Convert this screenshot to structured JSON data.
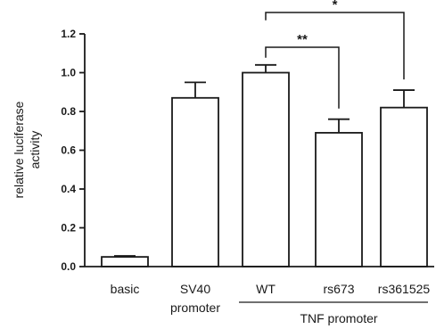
{
  "chart_data": {
    "type": "bar",
    "title": "",
    "xlabel": "",
    "ylabel": "relative luciferase activity",
    "ylim": [
      0,
      1.2
    ],
    "yticks": [
      "0.0",
      "0.2",
      "0.4",
      "0.6",
      "0.8",
      "1.0",
      "1.2"
    ],
    "categories": [
      "basic",
      "SV40",
      "WT",
      "rs673",
      "rs361525"
    ],
    "category_sublabels": [
      "",
      "promoter",
      "",
      "",
      ""
    ],
    "group_label": "TNF promoter",
    "values": [
      0.05,
      0.87,
      1.0,
      0.69,
      0.82
    ],
    "errors": [
      0.005,
      0.08,
      0.04,
      0.07,
      0.09
    ],
    "bar_fill": "#ffffff",
    "bar_stroke": "#1a1a1a",
    "significance": [
      {
        "from": "WT",
        "to": "rs673",
        "label": "**"
      },
      {
        "from": "WT",
        "to": "rs361525",
        "label": "*"
      }
    ],
    "grid": false
  }
}
